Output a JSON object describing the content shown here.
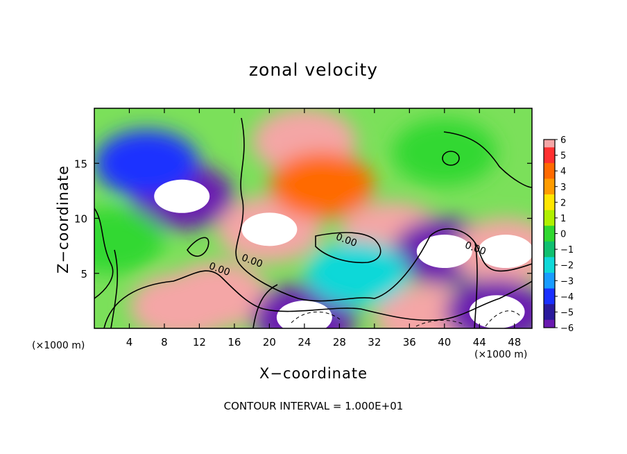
{
  "chart_data": {
    "type": "heatmap",
    "title": "zonal velocity",
    "xlabel": "X−coordinate",
    "ylabel": "Z−coordinate",
    "x_unit_left": "(×1000 m)",
    "x_unit_right": "(×1000 m)",
    "footer": "CONTOUR INTERVAL = 1.000E+01",
    "xlim": [
      0,
      50
    ],
    "ylim": [
      0,
      20
    ],
    "x_ticks": [
      4,
      8,
      12,
      16,
      20,
      24,
      28,
      32,
      36,
      40,
      44,
      48
    ],
    "y_ticks": [
      5,
      10,
      15
    ],
    "colorbar": {
      "range": [
        -6,
        6
      ],
      "ticks": [
        "6",
        "5",
        "4",
        "3",
        "2",
        "1",
        "0",
        "−1",
        "−2",
        "−3",
        "−4",
        "−5",
        "−6"
      ],
      "colors": [
        "#f4a6a6",
        "#ff3030",
        "#ff6a00",
        "#ff9c00",
        "#ffe600",
        "#b0f000",
        "#30d830",
        "#10c070",
        "#10d8d8",
        "#1a9cff",
        "#1a30ff",
        "#2a1a9c",
        "#6a1ab0"
      ]
    },
    "contour_labels": [
      "0.00",
      "0.00",
      "0.00",
      "0.00"
    ],
    "grid": false,
    "features": [
      {
        "x": 10,
        "z": 12,
        "value": -7
      },
      {
        "x": 20,
        "z": 9,
        "value": 7
      },
      {
        "x": 24,
        "z": 17,
        "value": 6
      },
      {
        "x": 34,
        "z": 8.5,
        "value": 6
      },
      {
        "x": 40,
        "z": 7,
        "value": -7
      },
      {
        "x": 47,
        "z": 7,
        "value": 7
      },
      {
        "x": 10,
        "z": 2,
        "value": 6
      },
      {
        "x": 14,
        "z": 3,
        "value": 6
      },
      {
        "x": 24,
        "z": 1,
        "value": -7
      },
      {
        "x": 38,
        "z": 1,
        "value": 6
      },
      {
        "x": 46,
        "z": 1.5,
        "value": -7
      },
      {
        "x": 26,
        "z": 13,
        "value": 4
      },
      {
        "x": 40,
        "z": 16,
        "value": 0.5
      },
      {
        "x": 6,
        "z": 15,
        "value": -4
      },
      {
        "x": 2,
        "z": 8,
        "value": 0
      },
      {
        "x": 30,
        "z": 5,
        "value": -2
      }
    ]
  }
}
